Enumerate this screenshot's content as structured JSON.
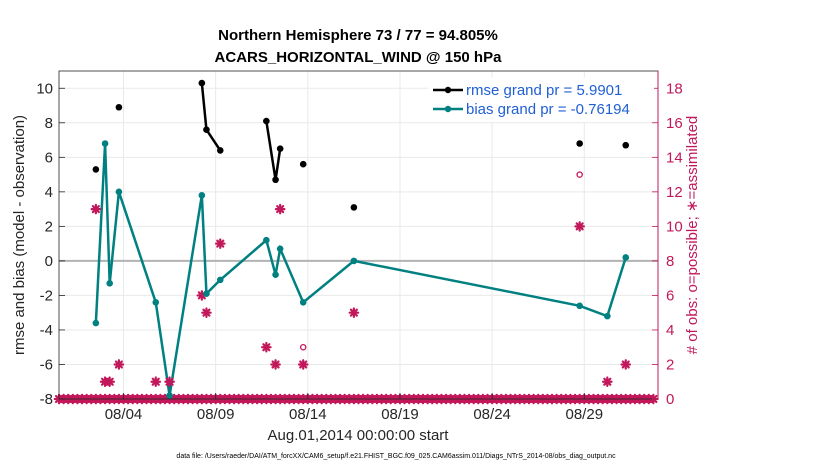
{
  "chart_data": {
    "type": "line",
    "title": [
      "Northern Hemisphere 73 / 77 = 94.805%",
      "ACARS_HORIZONTAL_WIND @ 150 hPa"
    ],
    "xlabel": "Aug.01,2014 00:00:00 start",
    "ylabel": "rmse and bias (model - observation)",
    "ylabel_right": "# of obs: o=possible; ∗=assimilated",
    "x_unit": "days since Aug.01,2014",
    "xlim": [
      0,
      32.5
    ],
    "ylim": [
      -8,
      11
    ],
    "ylim_right": [
      0,
      19
    ],
    "x_ticks": [
      3.5,
      8.5,
      13.5,
      18.5,
      23.5,
      28.5
    ],
    "x_tick_labels": [
      "08/04",
      "08/09",
      "08/14",
      "08/19",
      "08/24",
      "08/29"
    ],
    "y_ticks": [
      -8,
      -6,
      -4,
      -2,
      0,
      2,
      4,
      6,
      8,
      10
    ],
    "y_ticks_right": [
      0,
      2,
      4,
      6,
      8,
      10,
      12,
      14,
      16,
      18
    ],
    "zero_line": 0,
    "grid": true,
    "legend_position": "top-right",
    "series": [
      {
        "name": "rmse grand pr = 5.9901",
        "color": "#000000",
        "axis": "left",
        "x": [
          2,
          2.75,
          3.25,
          null,
          7.75,
          8,
          8.75,
          null,
          11.25,
          11.75,
          12,
          null,
          13.25,
          null,
          16,
          null,
          28.25,
          null,
          30.75
        ],
        "y": [
          5.3,
          null,
          8.9,
          null,
          10.3,
          7.6,
          6.4,
          null,
          8.1,
          4.7,
          6.5,
          null,
          5.6,
          null,
          3.1,
          null,
          6.8,
          null,
          6.7
        ]
      },
      {
        "name": "bias grand pr = -0.76194",
        "color": "#008080",
        "axis": "left",
        "x": [
          2,
          2.5,
          2.75,
          3.25,
          5.25,
          6,
          7.75,
          8,
          8.75,
          11.25,
          11.75,
          12,
          13.25,
          16,
          28.25,
          29.75,
          30.75
        ],
        "y": [
          -3.6,
          6.8,
          -1.3,
          4,
          -2.4,
          -7.8,
          3.8,
          -1.9,
          -1.1,
          1.2,
          -0.8,
          0.7,
          -2.4,
          0,
          -2.6,
          -3.2,
          0.2
        ]
      }
    ],
    "obs_possible": {
      "color": "#c2185b",
      "axis": "right",
      "x": [
        13.25,
        28.25
      ],
      "y": [
        3,
        13
      ]
    },
    "obs_assimilated": {
      "color": "#c2185b",
      "axis": "right",
      "x": [
        0,
        0.25,
        0.5,
        0.75,
        1,
        1.25,
        1.5,
        1.75,
        2,
        2.25,
        2.5,
        2.75,
        3,
        3.25,
        3.5,
        3.75,
        4,
        4.25,
        4.5,
        4.75,
        5,
        5.25,
        5.5,
        5.75,
        6,
        6.25,
        6.5,
        6.75,
        7,
        7.25,
        7.5,
        7.75,
        8,
        8.25,
        8.5,
        8.75,
        9,
        9.25,
        9.5,
        9.75,
        10,
        10.25,
        10.5,
        10.75,
        11,
        11.25,
        11.5,
        11.75,
        12,
        12.25,
        12.5,
        12.75,
        13,
        13.25,
        13.5,
        13.75,
        14,
        14.25,
        14.5,
        14.75,
        15,
        15.25,
        15.5,
        15.75,
        16,
        16.25,
        16.5,
        16.75,
        17,
        17.25,
        17.5,
        17.75,
        18,
        18.25,
        18.5,
        18.75,
        19,
        19.25,
        19.5,
        19.75,
        20,
        20.25,
        20.5,
        20.75,
        21,
        21.25,
        21.5,
        21.75,
        22,
        22.25,
        22.5,
        22.75,
        23,
        23.25,
        23.5,
        23.75,
        24,
        24.25,
        24.5,
        24.75,
        25,
        25.25,
        25.5,
        25.75,
        26,
        26.25,
        26.5,
        26.75,
        27,
        27.25,
        27.5,
        27.75,
        28,
        28.25,
        28.5,
        28.75,
        29,
        29.25,
        29.5,
        29.75,
        30,
        30.25,
        30.5,
        30.75,
        31,
        31.25,
        31.5,
        31.75,
        32,
        32.25,
        2,
        2.5,
        2.75,
        3.25,
        5.25,
        6,
        7.75,
        8,
        8.75,
        11.25,
        11.75,
        12,
        13.25,
        16,
        28.25,
        29.75,
        30.75
      ],
      "y": [
        0,
        0,
        0,
        0,
        0,
        0,
        0,
        0,
        0,
        0,
        0,
        0,
        0,
        0,
        0,
        0,
        0,
        0,
        0,
        0,
        0,
        0,
        0,
        0,
        0,
        0,
        0,
        0,
        0,
        0,
        0,
        0,
        0,
        0,
        0,
        0,
        0,
        0,
        0,
        0,
        0,
        0,
        0,
        0,
        0,
        0,
        0,
        0,
        0,
        0,
        0,
        0,
        0,
        0,
        0,
        0,
        0,
        0,
        0,
        0,
        0,
        0,
        0,
        0,
        0,
        0,
        0,
        0,
        0,
        0,
        0,
        0,
        0,
        0,
        0,
        0,
        0,
        0,
        0,
        0,
        0,
        0,
        0,
        0,
        0,
        0,
        0,
        0,
        0,
        0,
        0,
        0,
        0,
        0,
        0,
        0,
        0,
        0,
        0,
        0,
        0,
        0,
        0,
        0,
        0,
        0,
        0,
        0,
        0,
        0,
        0,
        0,
        0,
        0,
        0,
        0,
        0,
        0,
        0,
        0,
        0,
        0,
        0,
        0,
        0,
        0,
        0,
        0,
        0,
        0,
        11,
        1,
        1,
        2,
        1,
        1,
        6,
        5,
        9,
        3,
        2,
        11,
        2,
        5,
        10,
        1,
        2
      ]
    }
  },
  "footer": "data file: /Users/raeder/DAI/ATM_forcXX/CAM6_setup/f.e21.FHIST_BGC.f09_025.CAM6assim.011/Diags_NTrS_2014-08/obs_diag_output.nc"
}
